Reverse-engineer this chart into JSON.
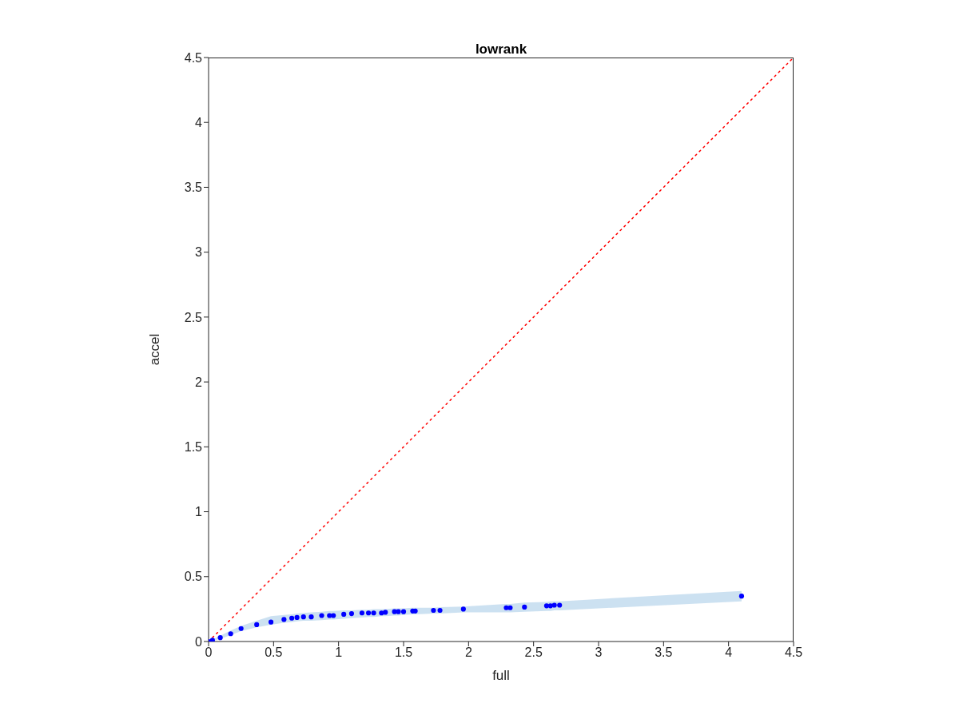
{
  "chart_data": {
    "type": "scatter",
    "title": "lowrank",
    "xlabel": "full",
    "ylabel": "accel",
    "xlim": [
      0,
      4.5
    ],
    "xticks": [
      0,
      0.5,
      1,
      1.5,
      2,
      2.5,
      3,
      3.5,
      4,
      4.5
    ],
    "ylim": [
      0,
      4.5
    ],
    "yticks": [
      0,
      0.5,
      1,
      1.5,
      2,
      2.5,
      3,
      3.5,
      4,
      4.5
    ],
    "grid": false,
    "legend": false,
    "marker": "circle",
    "series": [
      {
        "color": "#0000ff",
        "x": [
          0,
          0.03,
          0.09,
          0.17,
          0.25,
          0.37,
          0.48,
          0.58,
          0.64,
          0.68,
          0.73,
          0.79,
          0.87,
          0.93,
          0.96,
          1.04,
          1.1,
          1.18,
          1.23,
          1.27,
          1.33,
          1.36,
          1.43,
          1.46,
          1.5,
          1.57,
          1.59,
          1.73,
          1.78,
          1.96,
          2.29,
          2.32,
          2.43,
          2.6,
          2.63,
          2.66,
          2.7,
          4.1
        ],
        "values": [
          0,
          0.01,
          0.03,
          0.06,
          0.1,
          0.13,
          0.15,
          0.17,
          0.18,
          0.185,
          0.19,
          0.19,
          0.2,
          0.2,
          0.2,
          0.21,
          0.215,
          0.22,
          0.22,
          0.22,
          0.22,
          0.225,
          0.23,
          0.23,
          0.23,
          0.235,
          0.235,
          0.24,
          0.24,
          0.25,
          0.26,
          0.26,
          0.265,
          0.275,
          0.275,
          0.28,
          0.28,
          0.35
        ],
        "lower": [
          0,
          0.005,
          0.02,
          0.05,
          0.08,
          0.11,
          0.13,
          0.145,
          0.15,
          0.155,
          0.16,
          0.16,
          0.165,
          0.17,
          0.17,
          0.175,
          0.18,
          0.185,
          0.19,
          0.19,
          0.195,
          0.195,
          0.2,
          0.2,
          0.205,
          0.21,
          0.21,
          0.215,
          0.215,
          0.225,
          0.225,
          0.225,
          0.23,
          0.235,
          0.235,
          0.24,
          0.24,
          0.31
        ],
        "upper": [
          0,
          0.015,
          0.045,
          0.085,
          0.12,
          0.16,
          0.195,
          0.205,
          0.21,
          0.215,
          0.22,
          0.225,
          0.23,
          0.235,
          0.235,
          0.24,
          0.24,
          0.245,
          0.245,
          0.25,
          0.25,
          0.25,
          0.255,
          0.255,
          0.255,
          0.26,
          0.26,
          0.26,
          0.265,
          0.27,
          0.29,
          0.29,
          0.3,
          0.305,
          0.31,
          0.31,
          0.31,
          0.39
        ]
      },
      {
        "type": "line",
        "color": "#ff0000",
        "line_style": "dotted",
        "marker": "none",
        "x": [
          0,
          4.5
        ],
        "values": [
          0,
          4.5
        ]
      }
    ]
  }
}
